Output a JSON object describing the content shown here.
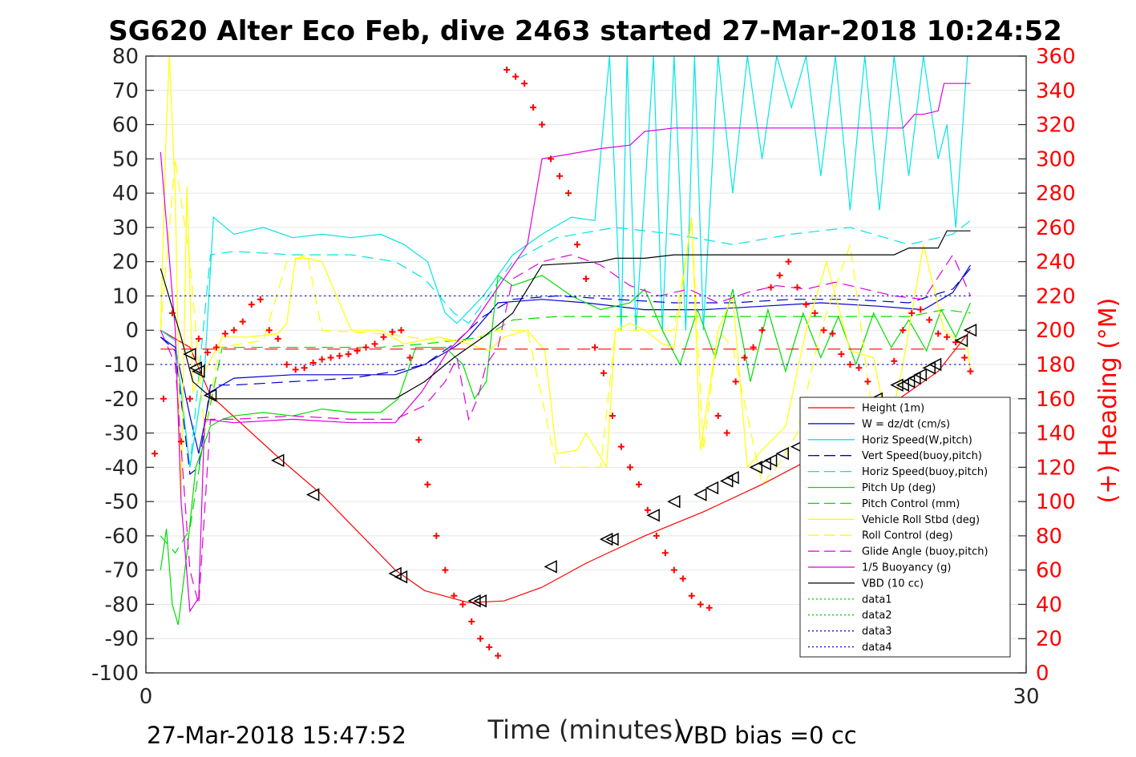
{
  "chart_data": {
    "type": "line",
    "title": "SG620 Alter Eco Feb, dive 2463 started 27-Mar-2018 10:24:52",
    "xlabel": "Time (minutes)",
    "ylabel_right": "(+) Heading (°M)",
    "footer_left": "27-Mar-2018 15:47:52",
    "footer_right": "VBD bias =0 cc",
    "xlim": [
      0,
      30
    ],
    "ylim": [
      -100,
      80
    ],
    "ylim_right": [
      0,
      360
    ],
    "x_ticks": [
      "0",
      "30"
    ],
    "y_ticks": [
      "80",
      "70",
      "60",
      "50",
      "40",
      "30",
      "20",
      "10",
      "0",
      "-10",
      "-20",
      "-30",
      "-40",
      "-50",
      "-60",
      "-70",
      "-80",
      "-90",
      "-100"
    ],
    "y_ticks_right": [
      "360",
      "340",
      "320",
      "300",
      "280",
      "260",
      "240",
      "220",
      "200",
      "180",
      "160",
      "140",
      "120",
      "100",
      "80",
      "60",
      "40",
      "20",
      "0"
    ],
    "grid": true,
    "legend_position": "bottom-right",
    "legend": [
      {
        "label": "Height (1m)",
        "color": "#ff0000",
        "style": "solid"
      },
      {
        "label": "W = dz/dt (cm/s)",
        "color": "#0000cc",
        "style": "solid"
      },
      {
        "label": "Horiz Speed(W,pitch)",
        "color": "#00e5e5",
        "style": "solid"
      },
      {
        "label": "Vert Speed(buoy,pitch)",
        "color": "#0000cc",
        "style": "dashed"
      },
      {
        "label": "Horiz Speed(buoy,pitch)",
        "color": "#00e5e5",
        "style": "dashed"
      },
      {
        "label": "Pitch Up (deg)",
        "color": "#00dd00",
        "style": "solid"
      },
      {
        "label": "Pitch Control (mm)",
        "color": "#00dd00",
        "style": "dashed"
      },
      {
        "label": "Vehicle Roll Stbd (deg)",
        "color": "#ffff00",
        "style": "solid"
      },
      {
        "label": "Roll Control (deg)",
        "color": "#ffff00",
        "style": "dashed"
      },
      {
        "label": "Glide Angle (buoy,pitch)",
        "color": "#dd00dd",
        "style": "dashed"
      },
      {
        "label": "1/5 Buoyancy (g)",
        "color": "#dd00dd",
        "style": "solid"
      },
      {
        "label": "VBD (10 cc)",
        "color": "#000000",
        "style": "solid"
      },
      {
        "label": "data1",
        "color": "#00dd00",
        "style": "dotted"
      },
      {
        "label": "data2",
        "color": "#00dd00",
        "style": "dotted"
      },
      {
        "label": "data3",
        "color": "#0000cc",
        "style": "dotted"
      },
      {
        "label": "data4",
        "color": "#0000cc",
        "style": "dotted"
      }
    ],
    "series": [
      {
        "key": "height",
        "color": "#ff0000",
        "dash": "",
        "x": [
          0.5,
          1.5,
          2.2,
          4.5,
          6,
          8.5,
          9.5,
          11,
          12.2,
          13.5,
          15,
          17,
          19,
          21,
          23,
          25,
          27,
          28.1
        ],
        "y": [
          0,
          -5,
          -19,
          -37,
          -48,
          -70,
          -76,
          -79.5,
          -79,
          -75,
          -68,
          -60,
          -53,
          -45,
          -36,
          -24,
          -12,
          0
        ]
      },
      {
        "key": "w",
        "color": "#0000cc",
        "dash": "",
        "x": [
          0.5,
          1,
          1.5,
          1.8,
          2.2,
          3,
          5,
          7,
          8.5,
          9.5,
          10.5,
          11,
          11.5,
          12,
          13.5,
          15,
          17,
          19,
          21,
          23,
          25,
          26.5,
          27.5,
          28.1
        ],
        "y": [
          -2,
          -5,
          -25,
          -36,
          -18,
          -14,
          -13,
          -13,
          -13,
          -10,
          -5,
          -2,
          3,
          8,
          9,
          8,
          6,
          6,
          7,
          8,
          7,
          6,
          11,
          19
        ]
      },
      {
        "key": "horiz_w",
        "color": "#00e5e5",
        "dash": "",
        "x": [
          0.5,
          1,
          1.5,
          2,
          2.3,
          3,
          4,
          5,
          6,
          7,
          8,
          8.8,
          9.6,
          10.2,
          10.6,
          11.5,
          12.5,
          13.5,
          14.5,
          15.3,
          15.8,
          16.2,
          16.4,
          16.7,
          17.3,
          17.6,
          18,
          18.4,
          18.7,
          19,
          19.5,
          20,
          20.5,
          21,
          21.5,
          22,
          22.5,
          23,
          23.5,
          24,
          24.5,
          25,
          25.5,
          26,
          26.5,
          27,
          27.3,
          27.6,
          28,
          28.1
        ],
        "y": [
          0,
          -3,
          -40,
          -12,
          33,
          28,
          30,
          27,
          28,
          27,
          28,
          25,
          20,
          5,
          2,
          10,
          22,
          28,
          33,
          32,
          80,
          0,
          80,
          0,
          80,
          0,
          80,
          0,
          80,
          0,
          80,
          40,
          80,
          50,
          80,
          65,
          80,
          45,
          80,
          35,
          80,
          35,
          80,
          45,
          80,
          50,
          60,
          30,
          80,
          80
        ]
      },
      {
        "key": "vert_buoy",
        "color": "#0000cc",
        "dash": "14,8",
        "x": [
          0.5,
          1,
          1.5,
          1.8,
          2.2,
          3,
          5,
          7,
          8.5,
          9.5,
          10.5,
          11.5,
          12.5,
          14,
          16,
          18,
          20,
          22,
          24,
          26,
          27.5,
          28.1
        ],
        "y": [
          -2,
          -6,
          -42,
          -40,
          -16,
          -16,
          -15,
          -14,
          -12,
          -10,
          -4,
          4,
          9,
          10,
          9,
          8,
          8,
          9,
          9,
          8,
          12,
          18
        ]
      },
      {
        "key": "horiz_buoy",
        "color": "#00e5e5",
        "dash": "14,8",
        "x": [
          0.5,
          1,
          1.5,
          2.2,
          3,
          5,
          7,
          8.5,
          9.5,
          10.5,
          11,
          11.5,
          12.5,
          14,
          16,
          18,
          20,
          22,
          24,
          26,
          27.5,
          28.1
        ],
        "y": [
          0,
          -3,
          -40,
          22,
          23,
          22,
          22,
          20,
          15,
          5,
          2,
          8,
          20,
          27,
          30,
          28,
          25,
          28,
          30,
          25,
          28,
          32
        ]
      },
      {
        "key": "pitch",
        "color": "#00dd00",
        "dash": "",
        "x": [
          0.5,
          0.7,
          0.9,
          1.1,
          1.4,
          1.7,
          2.2,
          2.6,
          3,
          4,
          5,
          6,
          7,
          8,
          8.6,
          9.2,
          10.2,
          10.8,
          11.2,
          11.6,
          12,
          12.5,
          13.5,
          14.5,
          15.5,
          16.5,
          17,
          17.6,
          18.2,
          18.8,
          19.4,
          20,
          20.6,
          21.2,
          21.8,
          22.4,
          23,
          23.6,
          24.2,
          24.8,
          25.4,
          26,
          26.6,
          27.1,
          27.6,
          28.1
        ],
        "y": [
          -70,
          -58,
          -80,
          -86,
          -65,
          -40,
          -28,
          -26,
          -25,
          -24,
          -25,
          -23,
          -24,
          -24,
          -20,
          -5,
          -5,
          -10,
          -20,
          -15,
          16,
          13,
          16,
          10,
          6,
          8,
          12,
          0,
          -10,
          6,
          -8,
          12,
          -15,
          6,
          -12,
          5,
          -8,
          4,
          -10,
          5,
          -5,
          3,
          -6,
          6,
          -2,
          8
        ]
      },
      {
        "key": "pitch_ctl",
        "color": "#00dd00",
        "dash": "14,8",
        "x": [
          0.5,
          1,
          1.5,
          2,
          2.6,
          5,
          8,
          9.5,
          10.5,
          11.5,
          12.5,
          14,
          16,
          18,
          20,
          22,
          24,
          26,
          27.2,
          28.1
        ],
        "y": [
          -60,
          -65,
          -58,
          -30,
          -5,
          -5,
          -5,
          -4,
          -3,
          -2,
          3,
          4,
          4,
          4,
          4,
          4,
          4,
          4,
          6,
          5
        ]
      },
      {
        "key": "roll",
        "color": "#ffff00",
        "dash": "",
        "x": [
          0.5,
          0.7,
          0.8,
          1,
          1.2,
          1.4,
          1.6,
          2,
          2.6,
          3.5,
          4.5,
          4.8,
          5.1,
          5.5,
          6,
          7,
          8,
          8.8,
          10,
          11,
          11.7,
          12.2,
          13,
          13.6,
          14,
          14.7,
          15,
          15.7,
          16,
          16.5,
          17,
          17.6,
          18,
          18.6,
          18.9,
          19.5,
          20,
          20.5,
          21,
          21.8,
          22.5,
          23.2,
          24,
          24.8,
          25.3,
          25.8,
          26.5,
          27.2,
          28,
          28.1
        ],
        "y": [
          0,
          60,
          80,
          40,
          -50,
          42,
          -18,
          -12,
          -2,
          -2,
          -1,
          2,
          21,
          21,
          20,
          0,
          0,
          -4,
          -2,
          -4,
          -6,
          -2,
          0,
          -6,
          -36,
          -35,
          -30,
          -40,
          0,
          2,
          0,
          -4,
          -5,
          33,
          -35,
          0,
          10,
          -40,
          -35,
          -28,
          0,
          20,
          -6,
          -8,
          -30,
          -10,
          25,
          0,
          -5,
          -12
        ]
      },
      {
        "key": "roll_ctl",
        "color": "#ffff00",
        "dash": "14,8",
        "x": [
          0.5,
          1,
          1.5,
          2,
          2.5,
          4,
          4.8,
          5.5,
          6,
          8,
          10,
          11,
          12,
          13,
          14,
          14.6,
          15.5,
          16,
          17,
          18,
          18.6,
          19,
          19.5,
          20,
          21,
          21.5,
          22.2,
          23,
          24,
          25,
          26,
          27,
          28.1
        ],
        "y": [
          0,
          50,
          20,
          -30,
          -5,
          -3,
          20,
          22,
          0,
          -1,
          -3,
          -3,
          0,
          0,
          -40,
          -40,
          -40,
          0,
          0,
          0,
          32,
          -35,
          0,
          -5,
          -45,
          -40,
          -30,
          0,
          25,
          -40,
          -35,
          -38,
          -30
        ]
      },
      {
        "key": "glide",
        "color": "#dd00dd",
        "dash": "14,8",
        "x": [
          0.5,
          1,
          1.5,
          1.8,
          2.2,
          3,
          5,
          7,
          8.5,
          9.5,
          10.2,
          10.6,
          11,
          11.3,
          11.6,
          12,
          12.5,
          13.5,
          14.5,
          15.5,
          16.5,
          17.5,
          18.5,
          19.5,
          20.5,
          21.5,
          22.5,
          23.5,
          24.5,
          25.5,
          26.5,
          27.5,
          28.1
        ],
        "y": [
          0,
          -10,
          -70,
          -80,
          -26,
          -26,
          -25,
          -26,
          -26,
          -22,
          -15,
          -8,
          -26,
          -20,
          -10,
          -5,
          15,
          20,
          22,
          19,
          13,
          10,
          12,
          8,
          11,
          13,
          12,
          14,
          12,
          10,
          9,
          22,
          10
        ]
      },
      {
        "key": "buoy",
        "color": "#dd00dd",
        "dash": "",
        "x": [
          0.5,
          1,
          1.2,
          1.5,
          1.8,
          2,
          3,
          5,
          7,
          8.5,
          9.4,
          10.3,
          11,
          13,
          13.5,
          15.5,
          16.5,
          17,
          18,
          20,
          22,
          24,
          25.8,
          26.2,
          26.5,
          27,
          27.2,
          28.1
        ],
        "y": [
          52,
          0,
          -50,
          -82,
          -78,
          -26,
          -27,
          -26,
          -27,
          -27,
          -18,
          -6,
          0,
          25,
          50,
          53,
          54,
          58,
          59,
          59,
          59,
          59,
          59,
          63,
          63,
          64,
          72,
          72
        ]
      },
      {
        "key": "vbd",
        "color": "#000000",
        "dash": "",
        "x": [
          0.5,
          1.2,
          1.6,
          2,
          2.3,
          3,
          5,
          7,
          8.5,
          9.5,
          10.5,
          11.5,
          12.5,
          13.5,
          15.5,
          16,
          17,
          18,
          20,
          22,
          24,
          25.5,
          26,
          27,
          27.3,
          28.1
        ],
        "y": [
          18,
          -2,
          -15,
          -18,
          -20,
          -20,
          -20,
          -20,
          -20,
          -15,
          -8,
          -2,
          5,
          19,
          20,
          21,
          21,
          22,
          22,
          22,
          22,
          22,
          24,
          24,
          29,
          29
        ]
      },
      {
        "key": "ref_upper",
        "color": "#0000cc",
        "dash": "2,4",
        "x": [
          0.5,
          28.1
        ],
        "y": [
          10,
          10
        ]
      },
      {
        "key": "ref_lower",
        "color": "#0000cc",
        "dash": "2,4",
        "x": [
          0.5,
          28.1
        ],
        "y": [
          -10,
          -10
        ]
      },
      {
        "key": "ref_mid",
        "color": "#ff0000",
        "dash": "16,10",
        "x": [
          0.5,
          28.1
        ],
        "y": [
          -5.5,
          -5.5
        ]
      }
    ],
    "heading_points": {
      "x": [
        0.3,
        0.6,
        0.9,
        1.2,
        1.5,
        1.8,
        2.1,
        2.4,
        2.7,
        3,
        3.3,
        3.6,
        3.9,
        4.2,
        4.5,
        4.8,
        5.1,
        5.4,
        5.7,
        6,
        6.3,
        6.6,
        6.9,
        7.2,
        7.5,
        7.8,
        8.1,
        8.4,
        8.7,
        9,
        9.3,
        9.6,
        9.9,
        10.2,
        10.5,
        10.8,
        11.1,
        11.4,
        11.7,
        12,
        12.3,
        12.6,
        12.9,
        13.2,
        13.5,
        13.8,
        14.1,
        14.4,
        14.7,
        15,
        15.3,
        15.6,
        15.9,
        16.2,
        16.5,
        16.8,
        17.1,
        17.4,
        17.7,
        18,
        18.3,
        18.6,
        18.9,
        19.2,
        19.5,
        19.8,
        20.1,
        20.4,
        20.7,
        21,
        21.3,
        21.6,
        21.9,
        22.2,
        22.5,
        22.8,
        23.1,
        23.4,
        23.7,
        24,
        24.3,
        24.6,
        24.9,
        25.2,
        25.5,
        25.8,
        26.1,
        26.4,
        26.7,
        27,
        27.3,
        27.6,
        27.9,
        28.1
      ],
      "y": [
        128,
        160,
        210,
        135,
        160,
        195,
        187,
        190,
        198,
        200,
        205,
        215,
        218,
        200,
        195,
        180,
        177,
        178,
        181,
        183,
        184,
        185,
        186,
        188,
        190,
        192,
        196,
        199,
        200,
        184,
        136,
        110,
        80,
        60,
        45,
        40,
        30,
        20,
        15,
        10,
        352,
        348,
        344,
        330,
        320,
        300,
        290,
        280,
        250,
        230,
        190,
        175,
        150,
        132,
        120,
        110,
        95,
        80,
        70,
        60,
        55,
        45,
        40,
        38,
        150,
        140,
        170,
        184,
        190,
        200,
        225,
        232,
        240,
        225,
        215,
        210,
        200,
        198,
        186,
        180,
        178,
        170,
        150,
        144,
        182,
        200,
        210,
        212,
        206,
        198,
        196,
        193,
        184,
        176
      ]
    },
    "triangle_markers": {
      "x": [
        1.5,
        1.7,
        1.8,
        2.2,
        4.5,
        5.7,
        8.5,
        8.7,
        11.2,
        11.4,
        13.8,
        15.7,
        15.9,
        17.3,
        18,
        18.9,
        19.3,
        19.8,
        20,
        20.8,
        21.1,
        21.3,
        21.7,
        22.2,
        22.7,
        22.9,
        23.4,
        23.9,
        24.4,
        24.9,
        25.6,
        25.8,
        26,
        26.2,
        26.4,
        26.7,
        26.9,
        27.8,
        28.1
      ],
      "y": [
        -7,
        -11,
        -12,
        -19,
        -38,
        -48,
        -71,
        -72,
        -79,
        -79,
        -69,
        -61,
        -61,
        -54,
        -50,
        -48,
        -46,
        -44,
        -43,
        -40,
        -39,
        -38,
        -36,
        -34,
        -32,
        -30,
        -27,
        -25,
        -22,
        -20,
        -16,
        -16,
        -15,
        -14,
        -13,
        -11,
        -10,
        -3,
        0
      ]
    }
  }
}
